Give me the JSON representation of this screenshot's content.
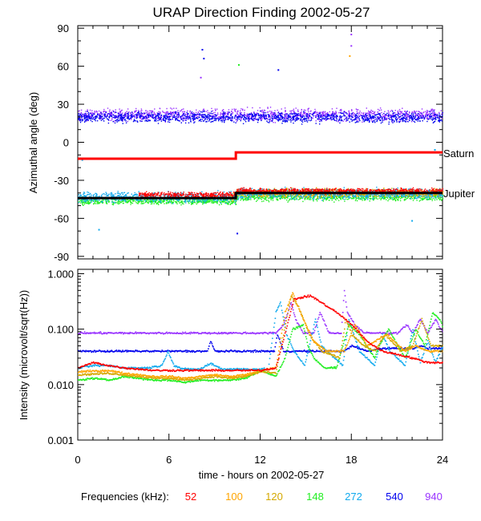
{
  "title": "URAP Direction Finding  2002-05-27",
  "xaxis": {
    "label": "time - hours on 2002-05-27",
    "range": [
      0,
      24
    ],
    "ticks": [
      0,
      6,
      12,
      18,
      24
    ],
    "tick_labels": [
      "0",
      "6",
      "12",
      "18",
      "24"
    ]
  },
  "freq_legend": {
    "label": "Frequencies (kHz):",
    "items": [
      {
        "name": "52",
        "color": "#ff0000"
      },
      {
        "name": "100",
        "color": "#ffa500"
      },
      {
        "name": "120",
        "color": "#d4a800"
      },
      {
        "name": "148",
        "color": "#22ee22"
      },
      {
        "name": "272",
        "color": "#11aaee"
      },
      {
        "name": "540",
        "color": "#0000ee"
      },
      {
        "name": "940",
        "color": "#9933ff"
      }
    ]
  },
  "chart_data": [
    {
      "type": "scatter",
      "title": "Azimuthal angle",
      "ylabel": "Azimuthal angle (deg)",
      "ylim": [
        -92,
        92
      ],
      "yticks": [
        90,
        60,
        30,
        0,
        -30,
        -60,
        -90
      ],
      "ytick_labels": [
        "90",
        "60",
        "30",
        "0",
        "-30",
        "-60",
        "-90"
      ],
      "reference_lines": [
        {
          "name": "Saturn",
          "color": "#ff0000",
          "segments": [
            {
              "x": [
                0,
                10.4
              ],
              "y": -13
            },
            {
              "x": [
                10.4,
                24
              ],
              "y": -8
            }
          ]
        },
        {
          "name": "Jupiter",
          "color": "#000000",
          "segments": [
            {
              "x": [
                0,
                10.4
              ],
              "y": -44
            },
            {
              "x": [
                10.4,
                24
              ],
              "y": -40
            }
          ]
        }
      ],
      "clusters": [
        {
          "name": "940 kHz band",
          "color": "#9933ff",
          "x": [
            0,
            24
          ],
          "y_center": 22,
          "y_spread": 7
        },
        {
          "name": "540 kHz band",
          "color": "#0000ee",
          "x": [
            0,
            24
          ],
          "y_center": 20,
          "y_spread": 6
        },
        {
          "name": "148 kHz band",
          "color": "#22ee22",
          "x": [
            0,
            24
          ],
          "y_center": -43,
          "y_spread": 4
        },
        {
          "name": "100 kHz band",
          "color": "#ffa500",
          "x": [
            10,
            24
          ],
          "y_center": -40,
          "y_spread": 4
        },
        {
          "name": "120 kHz band",
          "color": "#d4a800",
          "x": [
            10,
            24
          ],
          "y_center": -39,
          "y_spread": 4
        },
        {
          "name": "272 kHz band",
          "color": "#11aaee",
          "x": [
            0,
            24
          ],
          "y_center": -40,
          "y_spread": 6
        },
        {
          "name": "52 kHz band",
          "color": "#ff0000",
          "x": [
            4,
            24
          ],
          "y_center": -38,
          "y_spread": 3
        }
      ],
      "outliers": [
        {
          "x": 8.2,
          "y": 73,
          "color": "#0000ee"
        },
        {
          "x": 8.3,
          "y": 66,
          "color": "#0000ee"
        },
        {
          "x": 8.1,
          "y": 51,
          "color": "#9933ff"
        },
        {
          "x": 10.5,
          "y": -72,
          "color": "#0000ee"
        },
        {
          "x": 13.2,
          "y": 57,
          "color": "#0000ee"
        },
        {
          "x": 10.6,
          "y": 61,
          "color": "#22ee22"
        },
        {
          "x": 18.0,
          "y": 85,
          "color": "#9933ff"
        },
        {
          "x": 18.0,
          "y": 76,
          "color": "#9933ff"
        },
        {
          "x": 17.9,
          "y": 68,
          "color": "#ffa500"
        },
        {
          "x": 22.0,
          "y": -62,
          "color": "#11aaee"
        },
        {
          "x": 1.4,
          "y": -69,
          "color": "#11aaee"
        },
        {
          "x": 0.3,
          "y": -14,
          "color": "#11aaee"
        },
        {
          "x": 23.5,
          "y": -6,
          "color": "#11aaee"
        }
      ]
    },
    {
      "type": "line",
      "title": "Intensity",
      "ylabel": "Intensity (microvolt/sqrt(Hz))",
      "yscale": "log",
      "ylim": [
        0.001,
        1.2
      ],
      "yticks": [
        0.001,
        0.01,
        0.1,
        1.0
      ],
      "ytick_labels": [
        "0.001",
        "0.010",
        "0.100",
        "1.000"
      ],
      "series": [
        {
          "name": "940",
          "color": "#9933ff",
          "x": [
            0,
            13,
            13.5,
            14,
            14.3,
            14.8,
            15.5,
            15.9,
            16.5,
            17.3,
            17.5,
            17.7,
            18.2,
            18.8,
            19.3,
            20,
            21,
            21.6,
            22,
            22.5,
            23,
            23.5,
            24
          ],
          "y": [
            0.085,
            0.085,
            0.12,
            0.3,
            0.15,
            0.085,
            0.085,
            0.2,
            0.085,
            0.085,
            0.5,
            0.2,
            0.12,
            0.085,
            0.085,
            0.085,
            0.085,
            0.12,
            0.085,
            0.15,
            0.085,
            0.15,
            0.085
          ]
        },
        {
          "name": "540",
          "color": "#0000ee",
          "x": [
            0,
            5.6,
            5.8,
            6.2,
            8.5,
            8.7,
            9,
            12,
            12.9,
            13.1,
            13.5,
            14,
            14.5,
            16.5,
            17.5,
            18,
            19,
            20,
            22,
            22.5,
            23,
            24
          ],
          "y": [
            0.04,
            0.04,
            0.04,
            0.04,
            0.04,
            0.06,
            0.04,
            0.04,
            0.04,
            0.08,
            0.04,
            0.04,
            0.04,
            0.04,
            0.04,
            0.05,
            0.04,
            0.045,
            0.045,
            0.05,
            0.045,
            0.045
          ]
        },
        {
          "name": "272",
          "color": "#11aaee",
          "x": [
            0,
            1,
            2,
            3,
            4.5,
            5.5,
            5.9,
            6.3,
            6.9,
            8,
            8.7,
            9.5,
            11,
            12.5,
            13,
            13.3,
            13.7,
            14.2,
            14.9,
            15.6,
            16,
            17.4,
            17.8,
            18.5,
            19.5,
            20,
            20.5,
            21.5,
            22,
            22.5,
            23,
            23.5,
            24
          ],
          "y": [
            0.02,
            0.022,
            0.022,
            0.02,
            0.02,
            0.022,
            0.04,
            0.022,
            0.019,
            0.019,
            0.024,
            0.019,
            0.019,
            0.019,
            0.2,
            0.3,
            0.08,
            0.04,
            0.022,
            0.15,
            0.05,
            0.022,
            0.15,
            0.04,
            0.022,
            0.08,
            0.04,
            0.022,
            0.1,
            0.025,
            0.06,
            0.025,
            0.05
          ]
        },
        {
          "name": "148",
          "color": "#22ee22",
          "x": [
            0,
            1,
            2,
            3,
            4,
            5,
            6,
            7,
            8,
            9,
            10,
            11,
            12,
            13,
            13.6,
            14.1,
            14.8,
            15.1,
            15.5,
            16.2,
            17,
            17.4,
            17.8,
            18.5,
            19.5,
            19.8,
            20.4,
            21.5,
            22.2,
            22.8,
            23.3,
            23.8,
            24
          ],
          "y": [
            0.012,
            0.013,
            0.012,
            0.014,
            0.013,
            0.012,
            0.012,
            0.011,
            0.012,
            0.012,
            0.012,
            0.013,
            0.018,
            0.014,
            0.03,
            0.1,
            0.12,
            0.05,
            0.03,
            0.02,
            0.02,
            0.05,
            0.12,
            0.08,
            0.03,
            0.05,
            0.1,
            0.03,
            0.1,
            0.05,
            0.2,
            0.15,
            0.1
          ]
        },
        {
          "name": "120",
          "color": "#d4a800",
          "x": [
            0,
            2,
            3,
            4,
            5,
            6,
            7,
            8,
            9,
            10,
            11,
            12,
            13,
            13.5,
            14,
            14.5,
            15.2,
            16,
            17.2,
            17.6,
            18,
            18.8,
            19.5,
            20.2,
            21.2,
            22,
            22.6,
            23.2,
            24
          ],
          "y": [
            0.015,
            0.016,
            0.015,
            0.014,
            0.013,
            0.013,
            0.012,
            0.013,
            0.014,
            0.013,
            0.014,
            0.017,
            0.016,
            0.08,
            0.4,
            0.25,
            0.08,
            0.04,
            0.03,
            0.15,
            0.08,
            0.05,
            0.04,
            0.08,
            0.04,
            0.05,
            0.15,
            0.05,
            0.05
          ]
        },
        {
          "name": "100",
          "color": "#ffa500",
          "x": [
            0,
            2,
            3,
            4,
            5,
            6,
            7,
            8,
            9,
            10,
            11,
            12,
            13,
            13.6,
            14.1,
            14.6,
            15.5,
            16.3,
            17.5,
            18.2,
            19,
            20.3,
            21.5,
            22.2,
            23,
            24
          ],
          "y": [
            0.017,
            0.018,
            0.016,
            0.015,
            0.014,
            0.014,
            0.013,
            0.014,
            0.015,
            0.014,
            0.015,
            0.018,
            0.02,
            0.2,
            0.45,
            0.2,
            0.06,
            0.04,
            0.04,
            0.12,
            0.05,
            0.08,
            0.04,
            0.05,
            0.04,
            0.04
          ]
        },
        {
          "name": "52",
          "color": "#ff0000",
          "x": [
            0,
            1,
            2,
            3,
            4,
            5,
            7,
            9,
            12,
            13,
            14.2,
            15.3,
            16,
            17,
            18,
            19,
            20,
            21,
            22,
            23,
            24
          ],
          "y": [
            0.02,
            0.025,
            0.022,
            0.02,
            0.019,
            0.018,
            0.018,
            0.018,
            0.018,
            0.02,
            0.35,
            0.4,
            0.3,
            0.2,
            0.12,
            0.06,
            0.04,
            0.035,
            0.03,
            0.025,
            0.025
          ]
        }
      ]
    }
  ]
}
